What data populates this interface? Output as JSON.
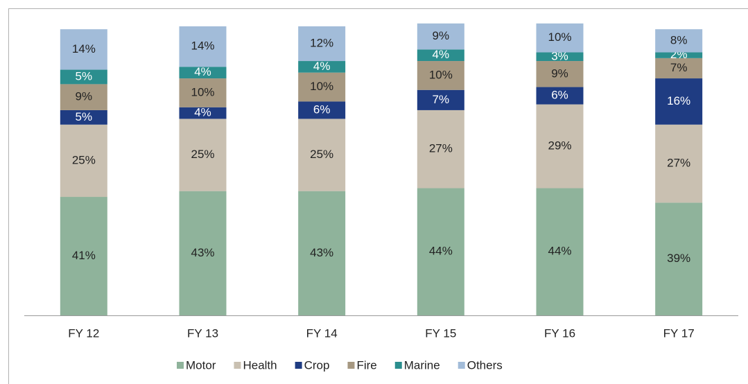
{
  "chart_data": {
    "type": "stacked_bar",
    "categories": [
      "FY 12",
      "FY 13",
      "FY 14",
      "FY 15",
      "FY 16",
      "FY 17"
    ],
    "ylim": [
      0,
      100
    ],
    "legend": "bottom",
    "series": [
      {
        "name": "Motor",
        "color": "#8fb39b",
        "values": [
          41,
          43,
          43,
          44,
          44,
          39
        ],
        "value_labels": [
          "41%",
          "43%",
          "43%",
          "44%",
          "44%",
          "39%"
        ]
      },
      {
        "name": "Health",
        "color": "#c9c0b1",
        "values": [
          25,
          25,
          25,
          27,
          29,
          27
        ],
        "value_labels": [
          "25%",
          "25%",
          "25%",
          "27%",
          "29%",
          "27%"
        ]
      },
      {
        "name": "Crop",
        "color": "#1f3c82",
        "values": [
          5,
          4,
          6,
          7,
          6,
          16
        ],
        "value_labels": [
          "5%",
          "4%",
          "6%",
          "7%",
          "6%",
          "16%"
        ]
      },
      {
        "name": "Fire",
        "color": "#a69881",
        "values": [
          9,
          10,
          10,
          10,
          9,
          7
        ],
        "value_labels": [
          "9%",
          "10%",
          "10%",
          "10%",
          "9%",
          "7%"
        ]
      },
      {
        "name": "Marine",
        "color": "#2b8e8e",
        "values": [
          5,
          4,
          4,
          4,
          3,
          2
        ],
        "value_labels": [
          "5%",
          "4%",
          "4%",
          "4%",
          "3%",
          "2%"
        ]
      },
      {
        "name": "Others",
        "color": "#a2bcd9",
        "values": [
          14,
          14,
          12,
          9,
          10,
          8
        ],
        "value_labels": [
          "14%",
          "14%",
          "12%",
          "9%",
          "10%",
          "8%"
        ]
      }
    ]
  }
}
